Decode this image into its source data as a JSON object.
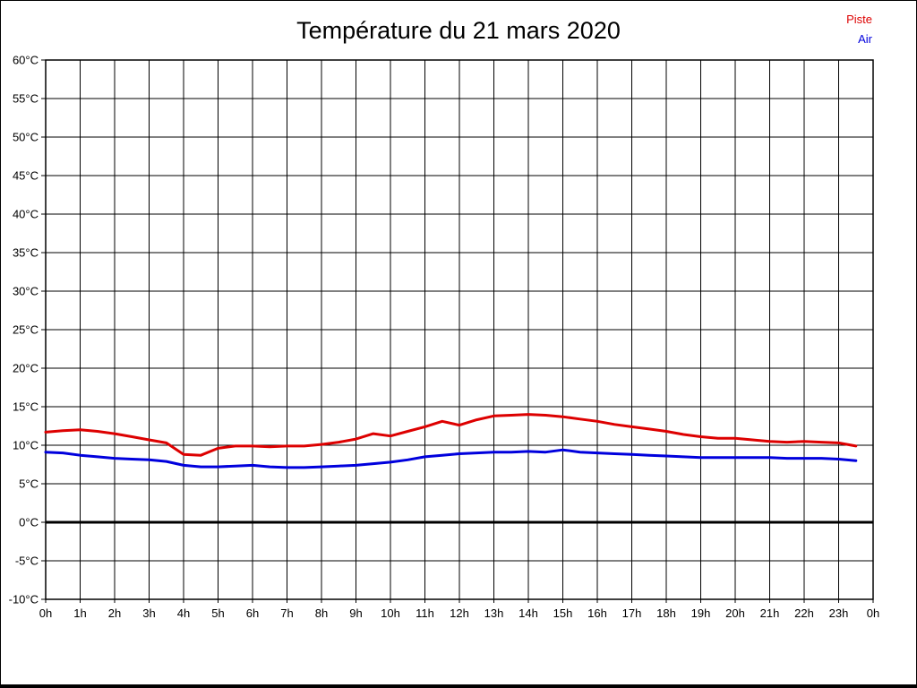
{
  "chart_data": {
    "type": "line",
    "title": "Température du 21 mars 2020",
    "xlabel": "",
    "ylabel": "",
    "xlim": [
      0,
      24
    ],
    "ylim": [
      -10,
      60
    ],
    "y_step": 5,
    "grid": true,
    "grid_color": "#000000",
    "zero_line_at": 0,
    "legend_position": "top-right",
    "x_tick_labels": [
      "0h",
      "1h",
      "2h",
      "3h",
      "4h",
      "5h",
      "6h",
      "7h",
      "8h",
      "9h",
      "10h",
      "11h",
      "12h",
      "13h",
      "14h",
      "15h",
      "16h",
      "17h",
      "18h",
      "19h",
      "20h",
      "21h",
      "22h",
      "23h",
      "0h"
    ],
    "y_tick_labels": [
      "60°C",
      "55°C",
      "50°C",
      "45°C",
      "40°C",
      "35°C",
      "30°C",
      "25°C",
      "20°C",
      "15°C",
      "10°C",
      "5°C",
      "0°C",
      "-5°C",
      "-10°C"
    ],
    "x": [
      0,
      0.5,
      1,
      1.5,
      2,
      2.5,
      3,
      3.5,
      4,
      4.5,
      5,
      5.5,
      6,
      6.5,
      7,
      7.5,
      8,
      8.5,
      9,
      9.5,
      10,
      10.5,
      11,
      11.5,
      12,
      12.5,
      13,
      13.5,
      14,
      14.5,
      15,
      15.5,
      16,
      16.5,
      17,
      17.5,
      18,
      18.5,
      19,
      19.5,
      20,
      20.5,
      21,
      21.5,
      22,
      22.5,
      23,
      23.5
    ],
    "series": [
      {
        "name": "Piste",
        "color": "#dd0000",
        "values": [
          11.7,
          11.9,
          12.0,
          11.8,
          11.5,
          11.1,
          10.7,
          10.3,
          8.8,
          8.7,
          9.6,
          9.9,
          9.9,
          9.8,
          9.9,
          9.9,
          10.1,
          10.4,
          10.8,
          11.5,
          11.2,
          11.8,
          12.4,
          13.1,
          12.6,
          13.3,
          13.8,
          13.9,
          14.0,
          13.9,
          13.7,
          13.4,
          13.1,
          12.7,
          12.4,
          12.1,
          11.8,
          11.4,
          11.1,
          10.9,
          10.9,
          10.7,
          10.5,
          10.4,
          10.5,
          10.4,
          10.3,
          9.9
        ]
      },
      {
        "name": "Air",
        "color": "#0000dd",
        "values": [
          9.1,
          9.0,
          8.7,
          8.5,
          8.3,
          8.2,
          8.1,
          7.9,
          7.4,
          7.2,
          7.2,
          7.3,
          7.4,
          7.2,
          7.1,
          7.1,
          7.2,
          7.3,
          7.4,
          7.6,
          7.8,
          8.1,
          8.5,
          8.7,
          8.9,
          9.0,
          9.1,
          9.1,
          9.2,
          9.1,
          9.4,
          9.1,
          9.0,
          8.9,
          8.8,
          8.7,
          8.6,
          8.5,
          8.4,
          8.4,
          8.4,
          8.4,
          8.4,
          8.3,
          8.3,
          8.3,
          8.2,
          8.0
        ]
      }
    ]
  }
}
